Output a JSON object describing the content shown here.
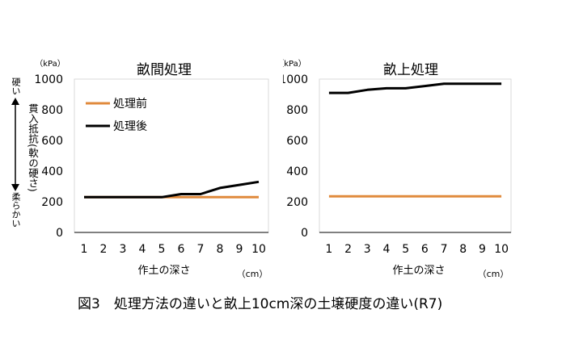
{
  "figure": {
    "caption": "図3　処理方法の違いと畝上10cm深の土壌硬度の違い(R7)",
    "y_axis_note": {
      "hard": "硬い",
      "measure": "貫入抵抗(軟の硬さ)",
      "soft": "柔らかい"
    }
  },
  "colors": {
    "before": "#E08A3C",
    "after": "#000000",
    "axis": "#000000",
    "plot_border": "#d9d9d9"
  },
  "chart_data": [
    {
      "type": "line",
      "title": "畝間処理",
      "xlabel": "作土の深さ",
      "xunit": "（cm）",
      "yunit": "（kPa）",
      "ylim": [
        0,
        1000
      ],
      "yticks": [
        0,
        200,
        400,
        600,
        800,
        1000
      ],
      "categories": [
        1,
        2,
        3,
        4,
        5,
        6,
        7,
        8,
        9,
        10
      ],
      "legend": "top-left",
      "series": [
        {
          "name": "処理前",
          "color_key": "before",
          "values": [
            230,
            230,
            230,
            230,
            230,
            230,
            230,
            230,
            230,
            230
          ]
        },
        {
          "name": "処理後",
          "color_key": "after",
          "values": [
            230,
            230,
            230,
            230,
            230,
            250,
            250,
            290,
            310,
            330
          ]
        }
      ]
    },
    {
      "type": "line",
      "title": "畝上処理",
      "xlabel": "作土の深さ",
      "xunit": "（cm）",
      "yunit": "（kPa）",
      "ylim": [
        0,
        1000
      ],
      "yticks": [
        0,
        200,
        400,
        600,
        800,
        1000
      ],
      "categories": [
        1,
        2,
        3,
        4,
        5,
        6,
        7,
        8,
        9,
        10
      ],
      "legend": "none",
      "series": [
        {
          "name": "処理前",
          "color_key": "before",
          "values": [
            235,
            235,
            235,
            235,
            235,
            235,
            235,
            235,
            235,
            235
          ]
        },
        {
          "name": "処理後",
          "color_key": "after",
          "values": [
            910,
            910,
            930,
            940,
            940,
            955,
            970,
            970,
            970,
            970
          ]
        }
      ]
    }
  ]
}
